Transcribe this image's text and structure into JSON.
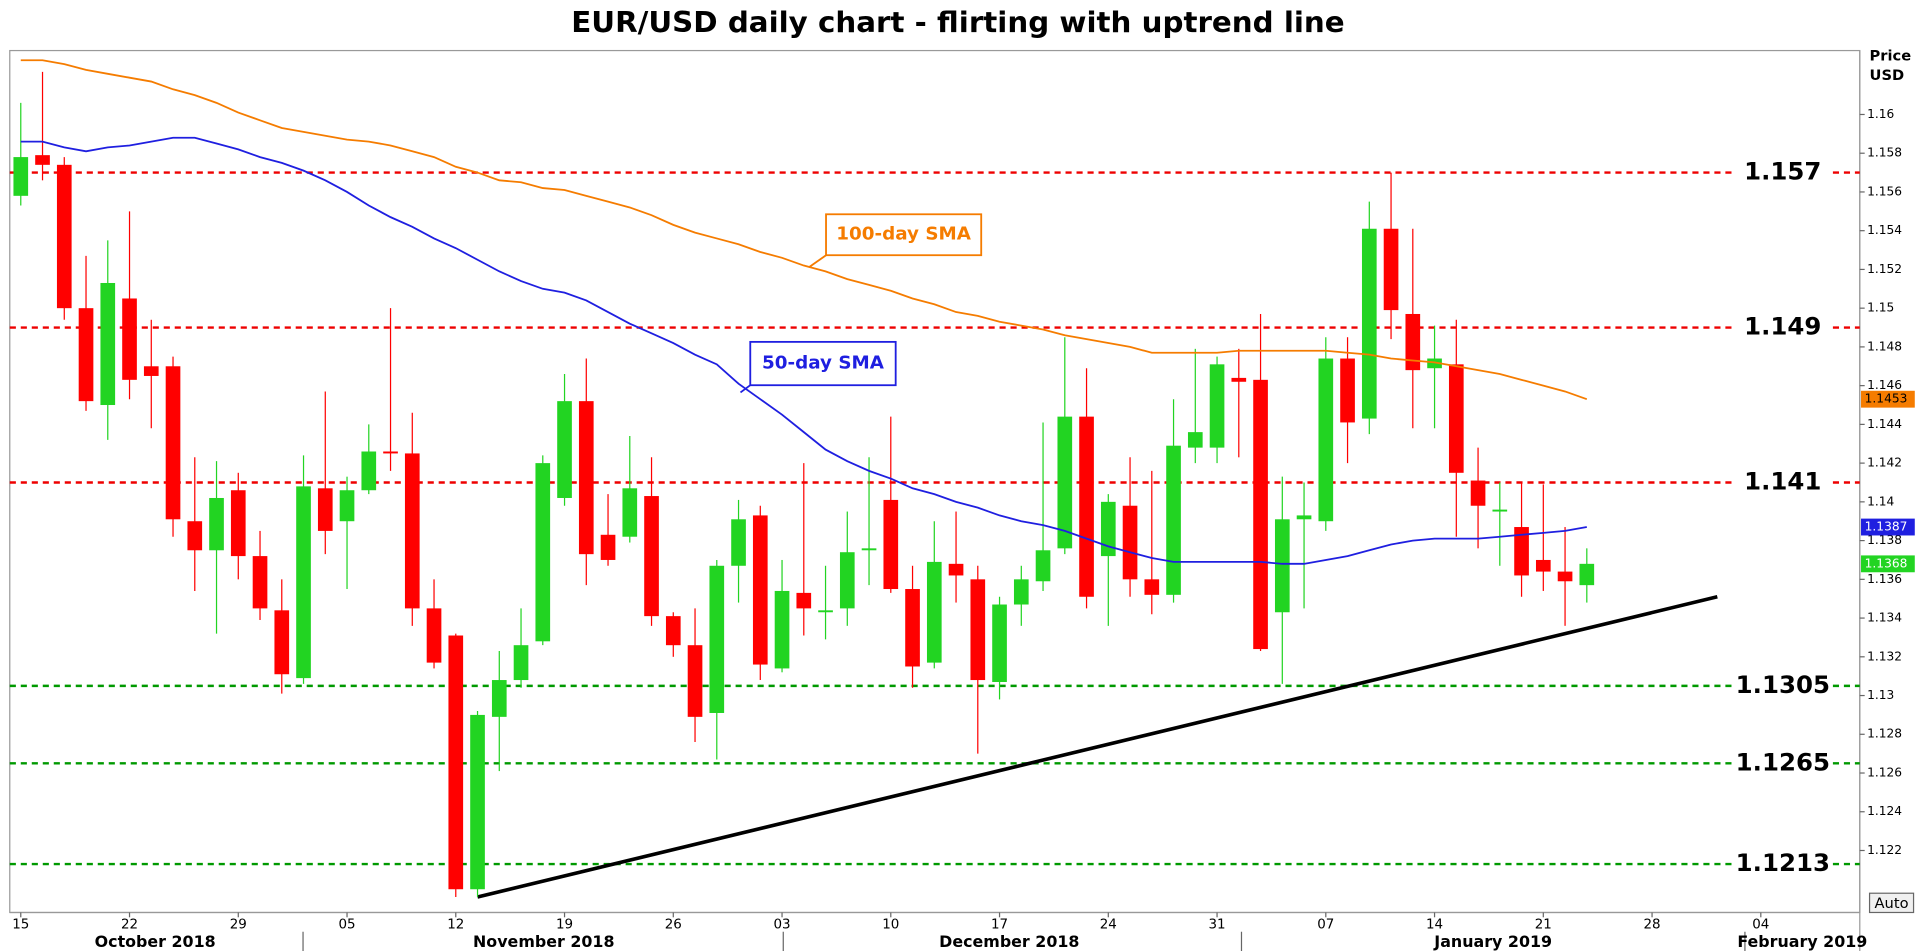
{
  "chart_data": {
    "type": "candlestick",
    "title": "EUR/USD daily chart - flirting with uptrend line",
    "y_label_lines": [
      "Price",
      "USD"
    ],
    "categories": [
      "15",
      null,
      null,
      null,
      null,
      "22",
      null,
      null,
      null,
      null,
      "29",
      null,
      null,
      null,
      null,
      "05",
      null,
      null,
      null,
      null,
      "12",
      null,
      null,
      null,
      null,
      "19",
      null,
      null,
      null,
      null,
      "26",
      null,
      null,
      null,
      null,
      "03",
      null,
      null,
      null,
      null,
      "10",
      null,
      null,
      null,
      null,
      "17",
      null,
      null,
      null,
      null,
      "24",
      null,
      null,
      null,
      null,
      "31",
      null,
      null,
      null,
      null,
      "07",
      null,
      null,
      null,
      null,
      "14",
      null,
      null,
      null,
      null,
      "21",
      null,
      null,
      null,
      null,
      "28",
      null,
      null,
      null,
      null,
      "04",
      null,
      null,
      null,
      null
    ],
    "month_labels": [
      "October 2018",
      "November 2018",
      "December 2018",
      "January 2019",
      "February 2019"
    ],
    "open": [
      1.1558,
      1.1579,
      1.1574,
      1.15,
      1.145,
      1.1505,
      1.147,
      1.147,
      1.139,
      1.1375,
      1.1406,
      1.1372,
      1.1344,
      1.1309,
      1.1407,
      1.139,
      1.1406,
      1.1426,
      1.1425,
      1.1345,
      1.1331,
      1.12,
      1.1289,
      1.1308,
      1.1328,
      1.1402,
      1.1452,
      1.1383,
      1.1382,
      1.1403,
      1.1341,
      1.1326,
      1.1291,
      1.1367,
      1.1393,
      1.1314,
      1.1353,
      1.1343,
      1.1345,
      1.1375,
      1.1401,
      1.1355,
      1.1317,
      1.1368,
      1.136,
      1.1307,
      1.1347,
      1.1359,
      1.1376,
      1.1444,
      1.1372,
      1.1398,
      1.136,
      1.1352,
      1.1428,
      1.1428,
      1.1464,
      1.1463,
      1.1343,
      1.1391,
      1.139,
      1.1474,
      1.1443,
      1.1541,
      1.1497,
      1.1469,
      1.1471,
      1.1411,
      1.1395,
      1.1387,
      1.137,
      1.1364,
      1.1357,
      null,
      null,
      null,
      null,
      null,
      null,
      null,
      null,
      null,
      null,
      null,
      null
    ],
    "high": [
      1.1606,
      1.1622,
      1.1578,
      1.1527,
      1.1535,
      1.155,
      1.1494,
      1.1475,
      1.1423,
      1.1421,
      1.1415,
      1.1385,
      1.136,
      1.1424,
      1.1457,
      1.1413,
      1.144,
      1.15,
      1.1446,
      1.136,
      1.1332,
      1.1292,
      1.1323,
      1.1345,
      1.1424,
      1.1466,
      1.1474,
      1.1404,
      1.1434,
      1.1423,
      1.1343,
      1.1345,
      1.137,
      1.1401,
      1.1398,
      1.137,
      1.142,
      1.1367,
      1.1395,
      1.1423,
      1.1444,
      1.1367,
      1.139,
      1.1395,
      1.1367,
      1.1351,
      1.1367,
      1.1441,
      1.1485,
      1.1469,
      1.1404,
      1.1423,
      1.1416,
      1.1453,
      1.1479,
      1.1475,
      1.1479,
      1.1497,
      1.1413,
      1.141,
      1.1485,
      1.1485,
      1.1555,
      1.157,
      1.1541,
      1.1491,
      1.1494,
      1.1428,
      1.141,
      1.141,
      1.1409,
      1.1387,
      1.1376,
      null,
      null,
      null,
      null,
      null,
      null,
      null,
      null,
      null,
      null,
      null,
      null
    ],
    "low": [
      1.1553,
      1.1566,
      1.1494,
      1.1447,
      1.1432,
      1.1453,
      1.1438,
      1.1382,
      1.1354,
      1.1332,
      1.136,
      1.1339,
      1.1301,
      1.1306,
      1.1373,
      1.1355,
      1.1404,
      1.1416,
      1.1336,
      1.1314,
      1.1196,
      1.1196,
      1.1261,
      1.1304,
      1.1326,
      1.1398,
      1.1357,
      1.1367,
      1.1379,
      1.1336,
      1.132,
      1.1276,
      1.1267,
      1.1348,
      1.1308,
      1.1312,
      1.1331,
      1.1329,
      1.1336,
      1.1357,
      1.1353,
      1.1304,
      1.1314,
      1.1348,
      1.127,
      1.1298,
      1.1336,
      1.1354,
      1.1373,
      1.1345,
      1.1336,
      1.1351,
      1.1342,
      1.1348,
      1.142,
      1.142,
      1.1423,
      1.1323,
      1.1306,
      1.1345,
      1.1385,
      1.142,
      1.1435,
      1.1484,
      1.1438,
      1.1438,
      1.1382,
      1.1376,
      1.1367,
      1.1351,
      1.1354,
      1.1336,
      1.1348,
      null,
      null,
      null,
      null,
      null,
      null,
      null,
      null,
      null,
      null,
      null,
      null
    ],
    "close": [
      1.1578,
      1.1574,
      1.15,
      1.1452,
      1.1513,
      1.1463,
      1.1465,
      1.1391,
      1.1375,
      1.1402,
      1.1372,
      1.1345,
      1.1311,
      1.1408,
      1.1385,
      1.1406,
      1.1426,
      1.1425,
      1.1345,
      1.1317,
      1.12,
      1.129,
      1.1308,
      1.1326,
      1.142,
      1.1452,
      1.1373,
      1.137,
      1.1407,
      1.1341,
      1.1326,
      1.1289,
      1.1367,
      1.1391,
      1.1316,
      1.1354,
      1.1345,
      1.1344,
      1.1374,
      1.1376,
      1.1355,
      1.1315,
      1.1369,
      1.1362,
      1.1308,
      1.1347,
      1.136,
      1.1375,
      1.1444,
      1.1351,
      1.14,
      1.136,
      1.1352,
      1.1429,
      1.1436,
      1.1471,
      1.1462,
      1.1324,
      1.1391,
      1.1393,
      1.1474,
      1.1441,
      1.1541,
      1.1499,
      1.1468,
      1.1474,
      1.1415,
      1.1398,
      1.1396,
      1.1362,
      1.1364,
      1.1359,
      1.1368,
      null,
      null,
      null,
      null,
      null,
      null,
      null,
      null,
      null,
      null,
      null,
      null
    ],
    "up_color": "#22d422",
    "down_color": "#ff0000",
    "series": [
      {
        "name": "100-day SMA",
        "color": "#f57c00",
        "values": [
          1.1628,
          1.1628,
          1.1626,
          1.1623,
          1.1621,
          1.1619,
          1.1617,
          1.1613,
          1.161,
          1.1606,
          1.1601,
          1.1597,
          1.1593,
          1.1591,
          1.1589,
          1.1587,
          1.1586,
          1.1584,
          1.1581,
          1.1578,
          1.1573,
          1.157,
          1.1566,
          1.1565,
          1.1562,
          1.1561,
          1.1558,
          1.1555,
          1.1552,
          1.1548,
          1.1543,
          1.1539,
          1.1536,
          1.1533,
          1.1529,
          1.1526,
          1.1522,
          1.1519,
          1.1515,
          1.1512,
          1.1509,
          1.1505,
          1.1502,
          1.1498,
          1.1496,
          1.1493,
          1.1491,
          1.1489,
          1.1486,
          1.1484,
          1.1482,
          1.148,
          1.1477,
          1.1477,
          1.1477,
          1.1477,
          1.1478,
          1.1478,
          1.1478,
          1.1478,
          1.1478,
          1.1477,
          1.1476,
          1.1474,
          1.1473,
          1.1472,
          1.147,
          1.1468,
          1.1466,
          1.1463,
          1.146,
          1.1457,
          1.1453,
          null,
          null,
          null,
          null,
          null,
          null,
          null,
          null,
          null,
          null,
          null,
          null
        ]
      },
      {
        "name": "50-day SMA",
        "color": "#1f1fe0",
        "values": [
          1.1586,
          1.1586,
          1.1583,
          1.1581,
          1.1583,
          1.1584,
          1.1586,
          1.1588,
          1.1588,
          1.1585,
          1.1582,
          1.1578,
          1.1575,
          1.1571,
          1.1566,
          1.156,
          1.1553,
          1.1547,
          1.1542,
          1.1536,
          1.1531,
          1.1525,
          1.1519,
          1.1514,
          1.151,
          1.1508,
          1.1504,
          1.1498,
          1.1492,
          1.1487,
          1.1482,
          1.1476,
          1.1471,
          1.1461,
          1.1453,
          1.1445,
          1.1436,
          1.1427,
          1.1421,
          1.1416,
          1.1412,
          1.1407,
          1.1404,
          1.14,
          1.1397,
          1.1393,
          1.139,
          1.1388,
          1.1385,
          1.1381,
          1.1377,
          1.1374,
          1.1371,
          1.1369,
          1.1369,
          1.1369,
          1.1369,
          1.1369,
          1.1368,
          1.1368,
          1.137,
          1.1372,
          1.1375,
          1.1378,
          1.138,
          1.1381,
          1.1381,
          1.1381,
          1.1382,
          1.1383,
          1.1384,
          1.1385,
          1.1387,
          null,
          null,
          null,
          null,
          null,
          null,
          null,
          null,
          null,
          null,
          null,
          null
        ]
      }
    ],
    "trendline": {
      "color": "#000000",
      "values": [
        null,
        null,
        null,
        null,
        null,
        null,
        null,
        null,
        null,
        null,
        null,
        null,
        null,
        null,
        null,
        null,
        null,
        null,
        null,
        null,
        null,
        1.1196,
        null,
        null,
        null,
        null,
        null,
        null,
        null,
        null,
        null,
        null,
        null,
        null,
        null,
        null,
        null,
        null,
        null,
        null,
        null,
        null,
        null,
        null,
        null,
        null,
        null,
        null,
        null,
        null,
        null,
        null,
        null,
        null,
        null,
        null,
        null,
        null,
        null,
        null,
        null,
        null,
        null,
        null,
        null,
        null,
        null,
        null,
        null,
        null,
        null,
        null,
        null,
        null,
        null,
        null,
        null,
        null,
        1.1351,
        null,
        null,
        null,
        null,
        null,
        null
      ]
    },
    "levels": [
      {
        "value": 1.157,
        "color": "#ee0000"
      },
      {
        "value": 1.149,
        "color": "#ee0000"
      },
      {
        "value": 1.141,
        "color": "#ee0000"
      },
      {
        "value": 1.1305,
        "color": "#009900"
      },
      {
        "value": 1.1265,
        "color": "#009900"
      },
      {
        "value": 1.1213,
        "color": "#009900"
      }
    ],
    "ylim": [
      1.1188,
      1.1633
    ],
    "yticks": [
      1.122,
      1.124,
      1.126,
      1.128,
      1.13,
      1.132,
      1.134,
      1.136,
      1.138,
      1.14,
      1.142,
      1.144,
      1.146,
      1.148,
      1.15,
      1.152,
      1.154,
      1.156,
      1.158,
      1.16
    ],
    "grid": false,
    "auto_button": "Auto"
  }
}
